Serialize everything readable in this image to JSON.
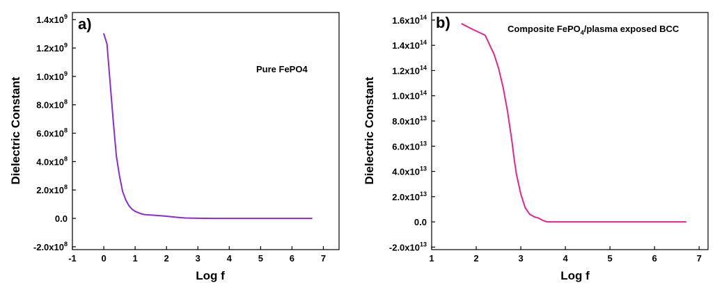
{
  "chart_data": [
    {
      "type": "line",
      "panel_label": "a)",
      "annotation": "Pure FePO4",
      "xlabel": "Log f",
      "ylabel": "Dielectric Constant",
      "xlim": [
        -1,
        7.5
      ],
      "ylim": [
        -220000000.0,
        1450000000.0
      ],
      "xticks": [
        "-1",
        "0",
        "1",
        "2",
        "3",
        "4",
        "5",
        "6",
        "7"
      ],
      "xtick_values": [
        -1,
        0,
        1,
        2,
        3,
        4,
        5,
        6,
        7
      ],
      "yticks": [
        {
          "value": -200000000.0,
          "mantissa": "-2.0x10",
          "exp": "8"
        },
        {
          "value": 0,
          "mantissa": "0.0",
          "exp": ""
        },
        {
          "value": 200000000.0,
          "mantissa": "2.0x10",
          "exp": "8"
        },
        {
          "value": 400000000.0,
          "mantissa": "4.0x10",
          "exp": "8"
        },
        {
          "value": 600000000.0,
          "mantissa": "6.0x10",
          "exp": "8"
        },
        {
          "value": 800000000.0,
          "mantissa": "8.0x10",
          "exp": "8"
        },
        {
          "value": 1000000000.0,
          "mantissa": "1.0x10",
          "exp": "9"
        },
        {
          "value": 1200000000.0,
          "mantissa": "1.2x10",
          "exp": "9"
        },
        {
          "value": 1400000000.0,
          "mantissa": "1.4x10",
          "exp": "9"
        }
      ],
      "color": "#8a2be2",
      "series": [
        {
          "x": [
            0.0,
            0.1,
            0.2,
            0.3,
            0.4,
            0.5,
            0.6,
            0.7,
            0.8,
            0.9,
            1.0,
            1.1,
            1.2,
            1.3,
            1.5,
            1.8,
            2.0,
            2.3,
            2.6,
            3.0,
            3.5,
            4.0,
            5.0,
            6.0,
            6.63
          ],
          "y": [
            1300000000.0,
            1230000000.0,
            960000000.0,
            690000000.0,
            440000000.0,
            300000000.0,
            190000000.0,
            130000000.0,
            90000000.0,
            65000000.0,
            50000000.0,
            40000000.0,
            32000000.0,
            27000000.0,
            24000000.0,
            19000000.0,
            15000000.0,
            8000000.0,
            3000000.0,
            1000000.0,
            0,
            0,
            0,
            0,
            0
          ]
        }
      ]
    },
    {
      "type": "line",
      "panel_label": "b)",
      "annotation_main": "Composite FePO",
      "annotation_sub": "4",
      "annotation_rest": "/plasma exposed BCC",
      "xlabel": "Log f",
      "ylabel": "Dielectric Constant",
      "xlim": [
        1,
        7.2
      ],
      "ylim": [
        -22000000000000.0,
        166000000000000.0
      ],
      "xticks": [
        "1",
        "2",
        "3",
        "4",
        "5",
        "6",
        "7"
      ],
      "xtick_values": [
        1,
        2,
        3,
        4,
        5,
        6,
        7
      ],
      "yticks": [
        {
          "value": -20000000000000.0,
          "mantissa": "-2.0x10",
          "exp": "13"
        },
        {
          "value": 0,
          "mantissa": "0.0",
          "exp": ""
        },
        {
          "value": 20000000000000.0,
          "mantissa": "2.0x10",
          "exp": "13"
        },
        {
          "value": 40000000000000.0,
          "mantissa": "4.0x10",
          "exp": "13"
        },
        {
          "value": 60000000000000.0,
          "mantissa": "6.0x10",
          "exp": "13"
        },
        {
          "value": 80000000000000.0,
          "mantissa": "8.0x10",
          "exp": "13"
        },
        {
          "value": 100000000000000.0,
          "mantissa": "1.0x10",
          "exp": "14"
        },
        {
          "value": 120000000000000.0,
          "mantissa": "1.2x10",
          "exp": "14"
        },
        {
          "value": 140000000000000.0,
          "mantissa": "1.4x10",
          "exp": "14"
        },
        {
          "value": 160000000000000.0,
          "mantissa": "1.6x10",
          "exp": "14"
        }
      ],
      "color": "#e8238c",
      "series": [
        {
          "x": [
            1.68,
            1.9,
            2.2,
            2.4,
            2.5,
            2.6,
            2.7,
            2.8,
            2.85,
            2.9,
            3.0,
            3.1,
            3.2,
            3.3,
            3.4,
            3.5,
            3.6,
            4.0,
            5.0,
            6.0,
            6.7
          ],
          "y": [
            157000000000000.0,
            153000000000000.0,
            148000000000000.0,
            133000000000000.0,
            122000000000000.0,
            107000000000000.0,
            88000000000000.0,
            64000000000000.0,
            50000000000000.0,
            38000000000000.0,
            22000000000000.0,
            11000000000000.0,
            6000000000000.0,
            4000000000000.0,
            3000000000000.0,
            1000000000000.0,
            0,
            0,
            0,
            0,
            0
          ]
        }
      ]
    }
  ]
}
